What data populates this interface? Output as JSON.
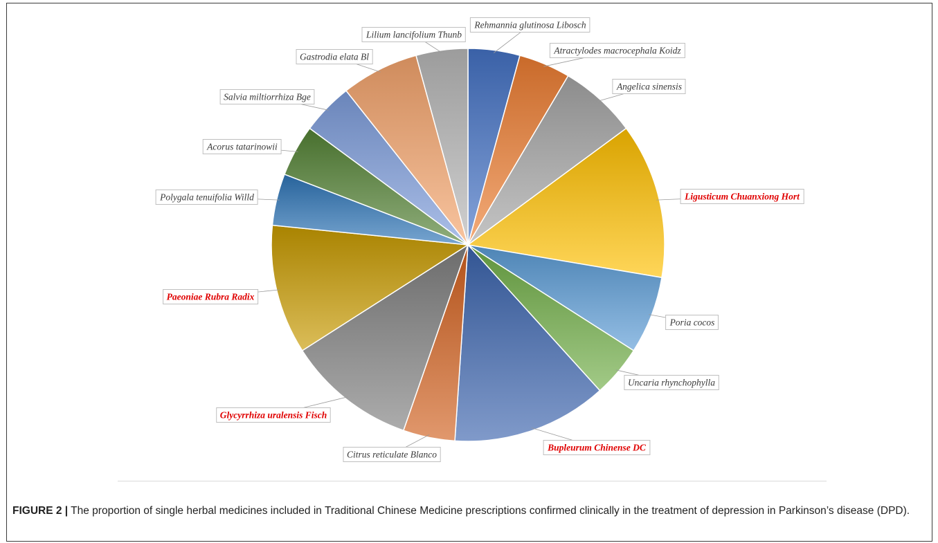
{
  "figure": {
    "caption_label": "FIGURE 2 |",
    "caption_text": "The proportion of single herbal medicines included in Traditional Chinese Medicine prescriptions confirmed clinically in the treatment of depression in Parkinson’s disease (DPD)."
  },
  "chart_data": {
    "type": "pie",
    "title": "",
    "start": "12 o'clock, clockwise",
    "colors": {
      "highlight_label": "#e00000",
      "normal_label": "#3a3a3a"
    },
    "slices": [
      {
        "label": "Rehmannia glutinosa Libosch",
        "value": 1,
        "color": "#4472c4",
        "highlight": false
      },
      {
        "label": "Atractylodes macrocephala Koidz",
        "value": 1,
        "color": "#ed7d31",
        "highlight": false
      },
      {
        "label": "Angelica sinensis",
        "value": 1.5,
        "color": "#a5a5a5",
        "highlight": false
      },
      {
        "label": "Ligusticum Chuanxiong Hort",
        "value": 3,
        "color": "#ffc000",
        "highlight": true
      },
      {
        "label": "Poria cocos",
        "value": 1.5,
        "color": "#5b9bd5",
        "highlight": false
      },
      {
        "label": "Uncaria rhynchophylla",
        "value": 1,
        "color": "#70ad47",
        "highlight": false
      },
      {
        "label": "Bupleurum Chinense DC",
        "value": 3,
        "color": "#3b64ad",
        "highlight": true
      },
      {
        "label": "Citrus reticulate Blanco",
        "value": 1,
        "color": "#d1601f",
        "highlight": false
      },
      {
        "label": "Glycyrrhiza uralensis Fisch",
        "value": 2.5,
        "color": "#7f7f7f",
        "highlight": true
      },
      {
        "label": "Paeoniae Rubra Radix",
        "value": 2.5,
        "color": "#c79a00",
        "highlight": true
      },
      {
        "label": "Polygala tenuifolia Willd",
        "value": 1,
        "color": "#2e75b6",
        "highlight": false
      },
      {
        "label": "Acorus tatarinowii",
        "value": 1,
        "color": "#548235",
        "highlight": false
      },
      {
        "label": "Salvia miltiorrhiza Bge",
        "value": 1,
        "color": "#7d9ddb",
        "highlight": false
      },
      {
        "label": "Gastrodia elata Bl",
        "value": 1.5,
        "color": "#f4a46c",
        "highlight": false
      },
      {
        "label": "Lilium lancifolium Thunb",
        "value": 1,
        "color": "#b7b7b7",
        "highlight": false
      }
    ]
  }
}
